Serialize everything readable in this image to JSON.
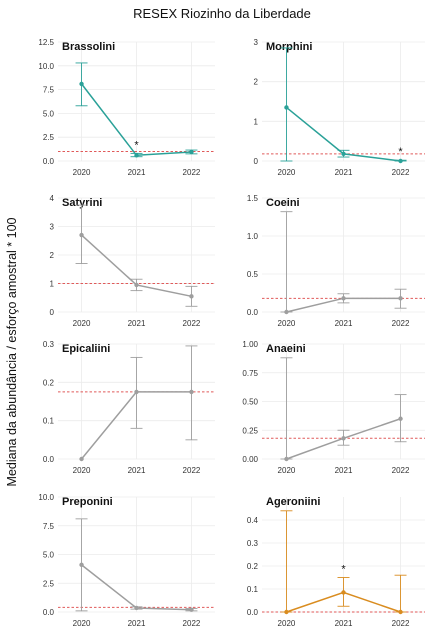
{
  "figure": {
    "title": "RESEX Riozinho da Liberdade",
    "ylabel": "Mediana da abundância / esforço amostral  * 100"
  },
  "chart_data": [
    {
      "type": "line",
      "title": "Brassolini",
      "color": "#2aa198",
      "categories": [
        "2020",
        "2021",
        "2022"
      ],
      "values": [
        8.1,
        0.6,
        0.95
      ],
      "lower": [
        5.8,
        0.45,
        0.75
      ],
      "upper": [
        10.3,
        0.8,
        1.15
      ],
      "reference": 1.0,
      "significant": [
        false,
        true,
        false
      ],
      "ylim": [
        0,
        12.5
      ],
      "yticks": [
        "0.0",
        "2.5",
        "5.0",
        "7.5",
        "10.0",
        "12.5"
      ],
      "tickvals": [
        0,
        2.5,
        5,
        7.5,
        10,
        12.5
      ]
    },
    {
      "type": "line",
      "title": "Morphini",
      "color": "#2aa198",
      "categories": [
        "2020",
        "2021",
        "2022"
      ],
      "values": [
        1.35,
        0.18,
        0.0
      ],
      "lower": [
        0.0,
        0.1,
        0.0
      ],
      "upper": [
        2.85,
        0.27,
        0.02
      ],
      "reference": 0.18,
      "significant": [
        false,
        false,
        true
      ],
      "ylim": [
        0,
        3
      ],
      "yticks": [
        "0",
        "1",
        "2",
        "3"
      ],
      "tickvals": [
        0,
        1,
        2,
        3
      ]
    },
    {
      "type": "line",
      "title": "Satyrini",
      "color": "#9e9e9e",
      "categories": [
        "2020",
        "2021",
        "2022"
      ],
      "values": [
        2.7,
        0.95,
        0.55
      ],
      "lower": [
        1.7,
        0.75,
        0.2
      ],
      "upper": [
        3.75,
        1.15,
        0.9
      ],
      "reference": 1.0,
      "significant": [
        false,
        false,
        false
      ],
      "ylim": [
        0,
        4
      ],
      "yticks": [
        "0",
        "1",
        "2",
        "3",
        "4"
      ],
      "tickvals": [
        0,
        1,
        2,
        3,
        4
      ]
    },
    {
      "type": "line",
      "title": "Coeini",
      "color": "#9e9e9e",
      "categories": [
        "2020",
        "2021",
        "2022"
      ],
      "values": [
        0.0,
        0.18,
        0.18
      ],
      "lower": [
        0.0,
        0.12,
        0.05
      ],
      "upper": [
        1.32,
        0.24,
        0.3
      ],
      "reference": 0.18,
      "significant": [
        false,
        false,
        false
      ],
      "ylim": [
        0,
        1.5
      ],
      "yticks": [
        "0.0",
        "0.5",
        "1.0",
        "1.5"
      ],
      "tickvals": [
        0,
        0.5,
        1,
        1.5
      ]
    },
    {
      "type": "line",
      "title": "Epicaliini",
      "color": "#9e9e9e",
      "categories": [
        "2020",
        "2021",
        "2022"
      ],
      "values": [
        0.0,
        0.175,
        0.175
      ],
      "lower": [
        0.0,
        0.08,
        0.05
      ],
      "upper": [
        0.0,
        0.265,
        0.295
      ],
      "reference": 0.175,
      "significant": [
        false,
        false,
        false
      ],
      "ylim": [
        0,
        0.3
      ],
      "yticks": [
        "0.0",
        "0.1",
        "0.2",
        "0.3"
      ],
      "tickvals": [
        0,
        0.1,
        0.2,
        0.3
      ]
    },
    {
      "type": "line",
      "title": "Anaeini",
      "color": "#9e9e9e",
      "categories": [
        "2020",
        "2021",
        "2022"
      ],
      "values": [
        0.0,
        0.18,
        0.35
      ],
      "lower": [
        0.0,
        0.12,
        0.15
      ],
      "upper": [
        0.88,
        0.25,
        0.56
      ],
      "reference": 0.18,
      "significant": [
        false,
        false,
        false
      ],
      "ylim": [
        0,
        1.0
      ],
      "yticks": [
        "0.00",
        "0.25",
        "0.50",
        "0.75",
        "1.00"
      ],
      "tickvals": [
        0,
        0.25,
        0.5,
        0.75,
        1
      ]
    },
    {
      "type": "line",
      "title": "Preponini",
      "color": "#9e9e9e",
      "categories": [
        "2020",
        "2021",
        "2022"
      ],
      "values": [
        4.1,
        0.35,
        0.2
      ],
      "lower": [
        0.1,
        0.25,
        0.1
      ],
      "upper": [
        8.1,
        0.45,
        0.3
      ],
      "reference": 0.4,
      "significant": [
        false,
        false,
        false
      ],
      "ylim": [
        0,
        10
      ],
      "yticks": [
        "0.0",
        "2.5",
        "5.0",
        "7.5",
        "10.0"
      ],
      "tickvals": [
        0,
        2.5,
        5,
        7.5,
        10
      ]
    },
    {
      "type": "line",
      "title": "Ageroniini",
      "color": "#d98c1f",
      "categories": [
        "2020",
        "2021",
        "2022"
      ],
      "values": [
        0.0,
        0.085,
        0.0
      ],
      "lower": [
        0.0,
        0.025,
        0.0
      ],
      "upper": [
        0.44,
        0.15,
        0.16
      ],
      "reference": 0.0,
      "significant": [
        false,
        true,
        false
      ],
      "ylim": [
        0,
        0.5
      ],
      "yticks": [
        "0.0",
        "0.1",
        "0.2",
        "0.3",
        "0.4"
      ],
      "tickvals": [
        0,
        0.1,
        0.2,
        0.3,
        0.4
      ]
    }
  ]
}
